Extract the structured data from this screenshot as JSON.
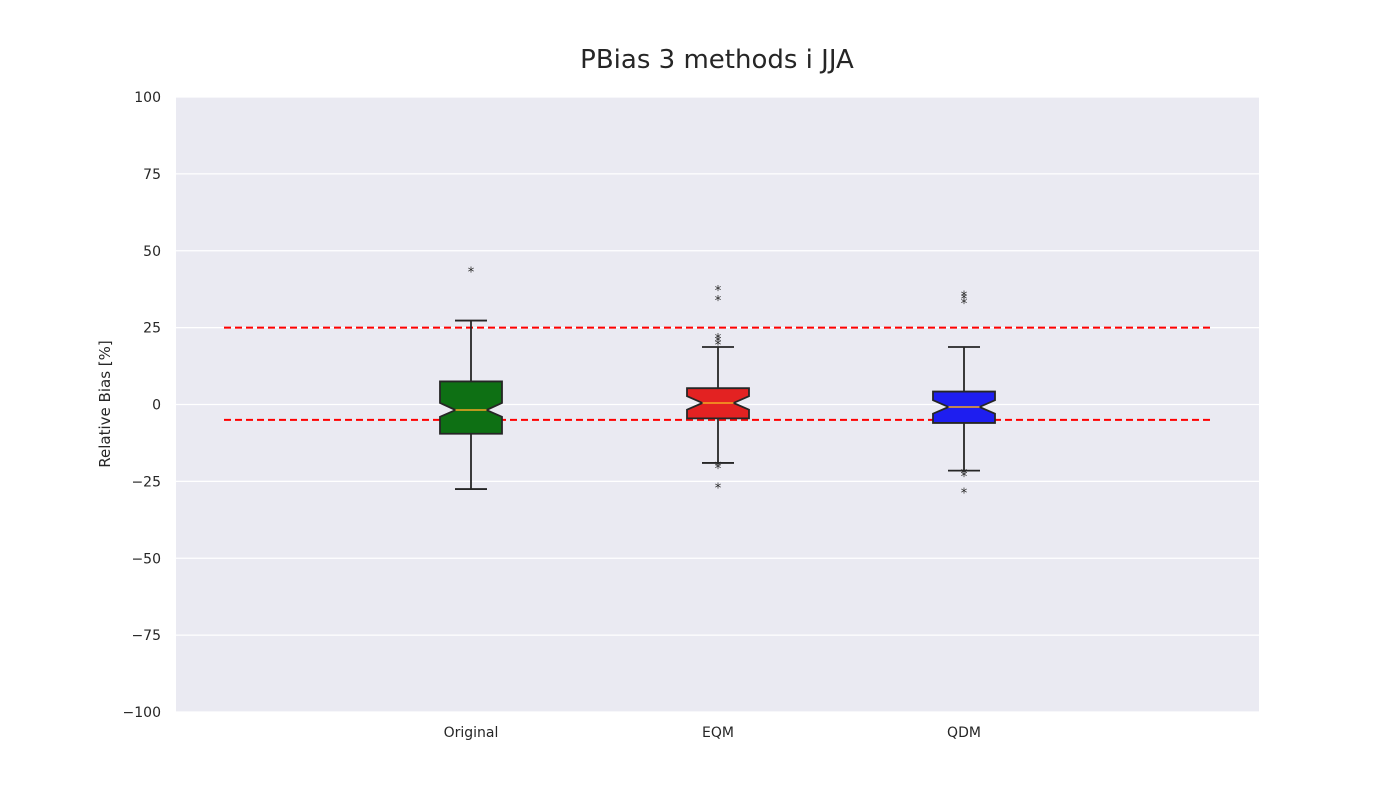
{
  "chart_data": {
    "type": "box",
    "title": "PBias 3 methods i JJA",
    "xlabel": "",
    "ylabel": "Relative Bias [%]",
    "ylim": [
      -100,
      100
    ],
    "yticks": [
      100,
      75,
      50,
      25,
      0,
      -25,
      -50,
      -75,
      -100
    ],
    "ytick_labels": [
      "100",
      "75",
      "50",
      "25",
      "0",
      "−25",
      "−50",
      "−75",
      "−100"
    ],
    "grid": true,
    "notched": true,
    "categories": [
      "Original",
      "EQM",
      "QDM"
    ],
    "boxes": [
      {
        "category": "Original",
        "color": "#0e7014",
        "whisker_low": -27.5,
        "q1": -9.5,
        "median": -1.8,
        "q3": 7.5,
        "whisker_high": 27.3,
        "notch_low": -4.0,
        "notch_high": 0.5,
        "outliers": [
          43.5
        ]
      },
      {
        "category": "EQM",
        "color": "#e32222",
        "whisker_low": -19.0,
        "q1": -4.5,
        "median": 0.5,
        "q3": 5.3,
        "whisker_high": 18.7,
        "notch_low": -1.7,
        "notch_high": 2.7,
        "outliers": [
          37.5,
          34.3,
          22.0,
          21.0,
          19.8,
          -19.5,
          -20.3,
          -26.7
        ]
      },
      {
        "category": "QDM",
        "color": "#1e1ef0",
        "whisker_low": -21.5,
        "q1": -6.0,
        "median": -0.8,
        "q3": 4.2,
        "whisker_high": 18.7,
        "notch_low": -3.0,
        "notch_high": 1.4,
        "outliers": [
          35.8,
          34.8,
          33.3,
          -22.0,
          -23.0,
          -28.3
        ]
      }
    ],
    "reference_lines": [
      {
        "y": 25,
        "color": "#ff0000",
        "style": "dashed"
      },
      {
        "y": -5,
        "color": "#ff0000",
        "style": "dashed"
      }
    ],
    "colors": {
      "background": "#eaeaf2",
      "grid": "#ffffff",
      "median": "#f5a623",
      "edge": "#262626"
    }
  }
}
